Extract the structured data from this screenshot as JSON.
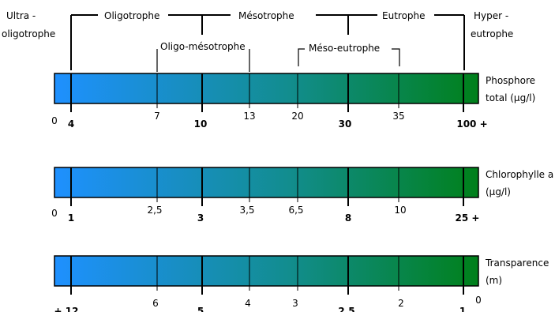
{
  "top_labels": {
    "ultra_line1": "Ultra -",
    "ultra_line2": "oligotrophe",
    "oligotrophe": "Oligotrophe",
    "mesotrophe": "Mésotrophe",
    "eutrophe": "Eutrophe",
    "hyper_line1": "Hyper -",
    "hyper_line2": "eutrophe",
    "oligo_mesotrophe": "Oligo-mésotrophe",
    "meso_eutrophe": "Méso-eutrophe"
  },
  "bars": [
    {
      "label_line1": "Phosphore",
      "label_line2": "total (µg/l)",
      "start_label": "0",
      "ticks": [
        "4",
        "7",
        "10",
        "13",
        "20",
        "30",
        "35",
        "100 +"
      ]
    },
    {
      "label_line1": "Chlorophylle a",
      "label_line2": "(µg/l)",
      "start_label": "0",
      "ticks": [
        "1",
        "2,5",
        "3",
        "3,5",
        "6,5",
        "8",
        "10",
        "25 +"
      ]
    },
    {
      "label_line1": "Transparence",
      "label_line2": "(m)",
      "start_label": "0",
      "ticks": [
        "+ 12",
        "6",
        "5",
        "4",
        "3",
        "2.5",
        "2",
        "1"
      ]
    }
  ],
  "colors": {
    "gradient_start": "#1e90ff",
    "gradient_mid": "#1a8a8a",
    "gradient_end": "#007a1a",
    "line": "#000000"
  }
}
